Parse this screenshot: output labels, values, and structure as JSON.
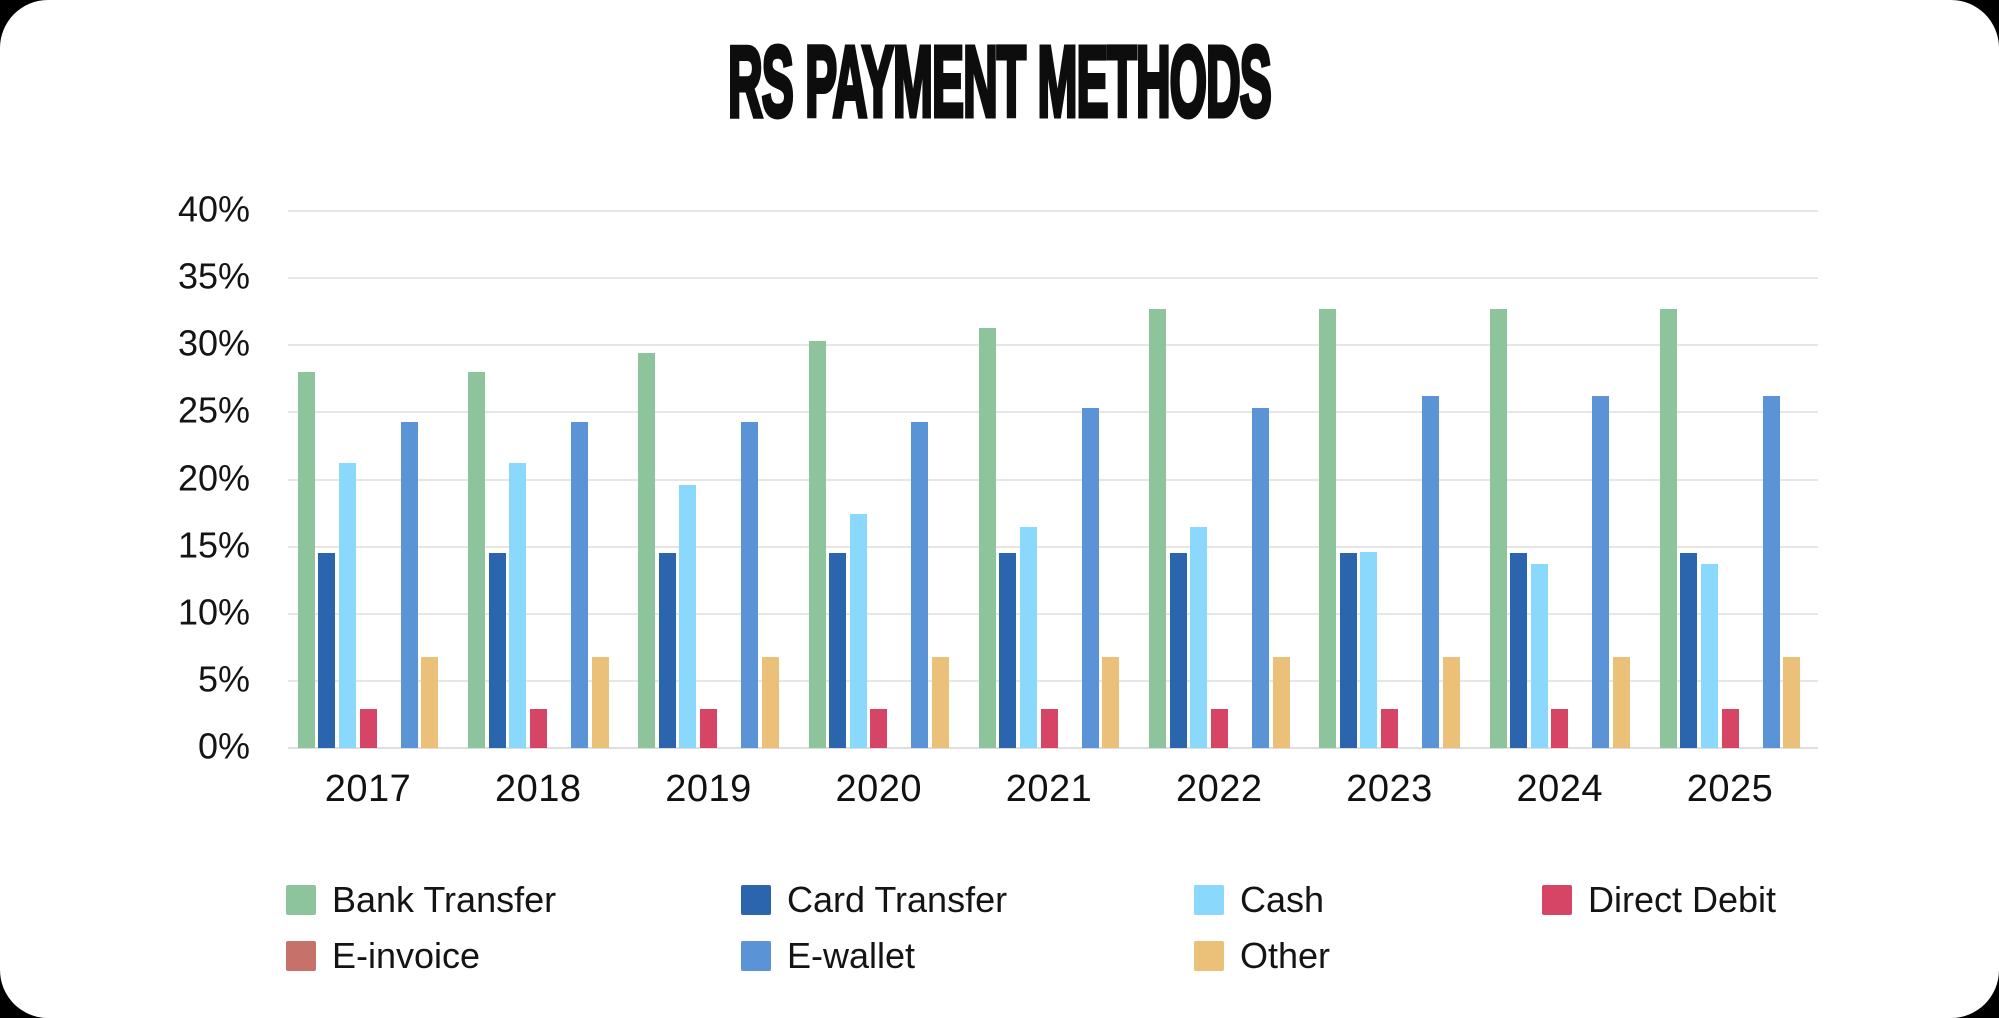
{
  "page": {
    "background": "#000000",
    "card_background": "#FFFFFF",
    "text_color": "#141414"
  },
  "chart_data": {
    "type": "bar",
    "title": "RS PAYMENT METHODS",
    "categories": [
      "2017",
      "2018",
      "2019",
      "2020",
      "2021",
      "2022",
      "2023",
      "2024",
      "2025"
    ],
    "series": [
      {
        "name": "Bank Transfer",
        "color": "#8EC49B",
        "values": [
          28.0,
          28.0,
          29.4,
          30.3,
          31.3,
          32.7,
          32.7,
          32.7,
          32.7
        ]
      },
      {
        "name": "Card Transfer",
        "color": "#2B65AD",
        "values": [
          14.5,
          14.5,
          14.5,
          14.5,
          14.5,
          14.5,
          14.5,
          14.5,
          14.5
        ]
      },
      {
        "name": "Cash",
        "color": "#8AD8FC",
        "values": [
          21.2,
          21.2,
          19.6,
          17.4,
          16.5,
          16.5,
          14.6,
          13.7,
          13.7
        ]
      },
      {
        "name": "Direct Debit",
        "color": "#D64565",
        "values": [
          2.9,
          2.9,
          2.9,
          2.9,
          2.9,
          2.9,
          2.9,
          2.9,
          2.9
        ]
      },
      {
        "name": "E-invoice",
        "color": "#C7716B",
        "values": [
          0,
          0,
          0,
          0,
          0,
          0,
          0,
          0,
          0
        ]
      },
      {
        "name": "E-wallet",
        "color": "#5B94D6",
        "values": [
          24.3,
          24.3,
          24.3,
          24.3,
          25.3,
          25.3,
          26.2,
          26.2,
          26.2
        ]
      },
      {
        "name": "Other",
        "color": "#EBC078",
        "values": [
          6.8,
          6.8,
          6.8,
          6.8,
          6.8,
          6.8,
          6.8,
          6.8,
          6.8
        ]
      }
    ],
    "xlabel": "",
    "ylabel": "",
    "ylim": [
      0,
      40
    ],
    "ytick_labels": [
      "40%",
      "35%",
      "30%",
      "25%",
      "20%",
      "15%",
      "10%",
      "5%",
      "0%"
    ],
    "grid": true,
    "legend_position": "bottom"
  }
}
